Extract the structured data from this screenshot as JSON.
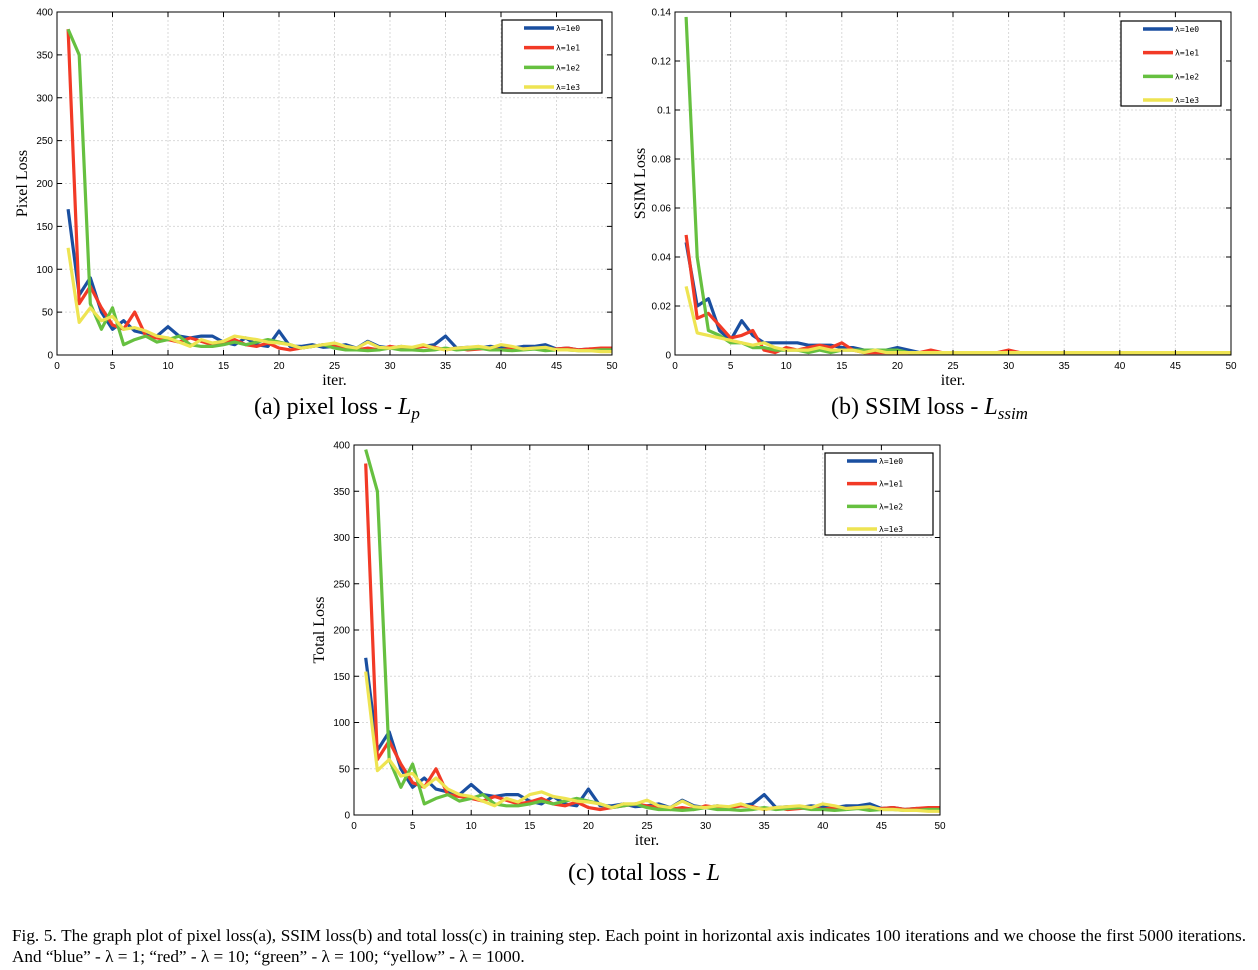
{
  "colors": {
    "blue": "#1a4fa0",
    "red": "#f23a26",
    "green": "#66c040",
    "yellow": "#eee452"
  },
  "chart_data": [
    {
      "type": "line",
      "id": "a",
      "xlabel": "iter.",
      "ylabel": "Pixel Loss",
      "xlim": [
        0,
        50
      ],
      "ylim": [
        0,
        400
      ],
      "xticks": [
        0,
        5,
        10,
        15,
        20,
        25,
        30,
        35,
        40,
        45,
        50
      ],
      "yticks": [
        0,
        50,
        100,
        150,
        200,
        250,
        300,
        350,
        400
      ],
      "legend_position": "top-right",
      "x": [
        1,
        2,
        3,
        4,
        5,
        6,
        7,
        8,
        9,
        10,
        11,
        12,
        13,
        14,
        15,
        16,
        17,
        18,
        19,
        20,
        21,
        22,
        23,
        24,
        25,
        26,
        27,
        28,
        29,
        30,
        31,
        32,
        33,
        34,
        35,
        36,
        37,
        38,
        39,
        40,
        41,
        42,
        43,
        44,
        45,
        46,
        47,
        48,
        49,
        50
      ],
      "series": [
        {
          "name": "λ=1e0",
          "color": "blue",
          "values": [
            170,
            70,
            90,
            50,
            30,
            40,
            28,
            25,
            22,
            33,
            22,
            20,
            22,
            22,
            15,
            12,
            20,
            12,
            10,
            28,
            10,
            10,
            12,
            9,
            10,
            12,
            8,
            16,
            10,
            8,
            10,
            8,
            10,
            12,
            22,
            8,
            9,
            8,
            10,
            9,
            8,
            10,
            10,
            12,
            7,
            8,
            6,
            7,
            6,
            6
          ]
        },
        {
          "name": "λ=1e1",
          "color": "red",
          "values": [
            380,
            60,
            80,
            55,
            35,
            30,
            50,
            22,
            20,
            18,
            15,
            20,
            16,
            12,
            14,
            18,
            12,
            10,
            14,
            8,
            6,
            8,
            10,
            12,
            10,
            8,
            6,
            8,
            6,
            10,
            8,
            8,
            10,
            9,
            6,
            8,
            6,
            7,
            8,
            6,
            8,
            7,
            8,
            6,
            7,
            8,
            6,
            7,
            8,
            8
          ]
        },
        {
          "name": "λ=1e2",
          "color": "green",
          "values": [
            380,
            350,
            60,
            30,
            55,
            12,
            18,
            22,
            15,
            18,
            22,
            12,
            10,
            10,
            12,
            15,
            12,
            15,
            18,
            15,
            12,
            8,
            10,
            12,
            8,
            6,
            6,
            5,
            6,
            8,
            6,
            6,
            5,
            6,
            8,
            6,
            7,
            8,
            6,
            6,
            5,
            6,
            7,
            5,
            6,
            6,
            5,
            5,
            6,
            6
          ]
        },
        {
          "name": "λ=1e3",
          "color": "yellow",
          "values": [
            125,
            38,
            55,
            40,
            45,
            30,
            32,
            28,
            22,
            20,
            15,
            10,
            18,
            14,
            16,
            22,
            20,
            18,
            15,
            14,
            12,
            8,
            10,
            12,
            14,
            10,
            8,
            15,
            9,
            8,
            10,
            9,
            12,
            8,
            6,
            8,
            9,
            10,
            8,
            12,
            10,
            7,
            8,
            9,
            6,
            6,
            5,
            5,
            4,
            4
          ]
        }
      ]
    },
    {
      "type": "line",
      "id": "b",
      "xlabel": "iter.",
      "ylabel": "SSIM Loss",
      "xlim": [
        0,
        50
      ],
      "ylim": [
        0,
        0.14
      ],
      "xticks": [
        0,
        5,
        10,
        15,
        20,
        25,
        30,
        35,
        40,
        45,
        50
      ],
      "yticks": [
        0,
        0.02,
        0.04,
        0.06,
        0.08,
        0.1,
        0.12,
        0.14
      ],
      "legend_position": "top-right",
      "x": [
        1,
        2,
        3,
        4,
        5,
        6,
        7,
        8,
        9,
        10,
        11,
        12,
        13,
        14,
        15,
        16,
        17,
        18,
        19,
        20,
        21,
        22,
        23,
        24,
        25,
        26,
        27,
        28,
        29,
        30,
        31,
        32,
        33,
        34,
        35,
        36,
        37,
        38,
        39,
        40,
        41,
        42,
        43,
        44,
        45,
        46,
        47,
        48,
        49,
        50
      ],
      "series": [
        {
          "name": "λ=1e0",
          "color": "blue",
          "values": [
            0.046,
            0.02,
            0.023,
            0.01,
            0.006,
            0.014,
            0.008,
            0.005,
            0.005,
            0.005,
            0.005,
            0.004,
            0.004,
            0.004,
            0.003,
            0.003,
            0.002,
            0.002,
            0.002,
            0.003,
            0.002,
            0.001,
            0.001,
            0.001,
            0.001,
            0.001,
            0.001,
            0.001,
            0.001,
            0.001,
            0.001,
            0.001,
            0.001,
            0.001,
            0.001,
            0.001,
            0.001,
            0.001,
            0.001,
            0.001,
            0.001,
            0.001,
            0.001,
            0.001,
            0.001,
            0.001,
            0.001,
            0.001,
            0.001,
            0.001
          ]
        },
        {
          "name": "λ=1e1",
          "color": "red",
          "values": [
            0.049,
            0.015,
            0.017,
            0.012,
            0.007,
            0.008,
            0.01,
            0.002,
            0.001,
            0.003,
            0.002,
            0.003,
            0.004,
            0.003,
            0.005,
            0.002,
            0.001,
            0.001,
            0.001,
            0.001,
            0.001,
            0.001,
            0.002,
            0.001,
            0.001,
            0.001,
            0.001,
            0.001,
            0.001,
            0.002,
            0.001,
            0.001,
            0.001,
            0.001,
            0.001,
            0.001,
            0.001,
            0.001,
            0.001,
            0.001,
            0.001,
            0.001,
            0.001,
            0.001,
            0.001,
            0.001,
            0.001,
            0.001,
            0.001,
            0.001
          ]
        },
        {
          "name": "λ=1e2",
          "color": "green",
          "values": [
            0.138,
            0.04,
            0.01,
            0.008,
            0.005,
            0.005,
            0.003,
            0.003,
            0.002,
            0.002,
            0.002,
            0.001,
            0.002,
            0.001,
            0.002,
            0.002,
            0.002,
            0.002,
            0.002,
            0.002,
            0.001,
            0.001,
            0.001,
            0.001,
            0.001,
            0.001,
            0.001,
            0.001,
            0.001,
            0.001,
            0.001,
            0.001,
            0.001,
            0.001,
            0.001,
            0.001,
            0.001,
            0.001,
            0.001,
            0.001,
            0.001,
            0.001,
            0.001,
            0.001,
            0.001,
            0.001,
            0.001,
            0.001,
            0.001,
            0.001
          ]
        },
        {
          "name": "λ=1e3",
          "color": "yellow",
          "values": [
            0.028,
            0.009,
            0.008,
            0.007,
            0.006,
            0.005,
            0.004,
            0.005,
            0.003,
            0.002,
            0.002,
            0.002,
            0.003,
            0.002,
            0.002,
            0.002,
            0.001,
            0.002,
            0.001,
            0.001,
            0.001,
            0.001,
            0.001,
            0.001,
            0.001,
            0.001,
            0.001,
            0.001,
            0.001,
            0.001,
            0.001,
            0.001,
            0.001,
            0.001,
            0.001,
            0.001,
            0.001,
            0.001,
            0.001,
            0.001,
            0.001,
            0.001,
            0.001,
            0.001,
            0.001,
            0.001,
            0.001,
            0.001,
            0.001,
            0.001
          ]
        }
      ]
    },
    {
      "type": "line",
      "id": "c",
      "xlabel": "iter.",
      "ylabel": "Total Loss",
      "xlim": [
        0,
        50
      ],
      "ylim": [
        0,
        400
      ],
      "xticks": [
        0,
        5,
        10,
        15,
        20,
        25,
        30,
        35,
        40,
        45,
        50
      ],
      "yticks": [
        0,
        50,
        100,
        150,
        200,
        250,
        300,
        350,
        400
      ],
      "legend_position": "top-right",
      "x": [
        1,
        2,
        3,
        4,
        5,
        6,
        7,
        8,
        9,
        10,
        11,
        12,
        13,
        14,
        15,
        16,
        17,
        18,
        19,
        20,
        21,
        22,
        23,
        24,
        25,
        26,
        27,
        28,
        29,
        30,
        31,
        32,
        33,
        34,
        35,
        36,
        37,
        38,
        39,
        40,
        41,
        42,
        43,
        44,
        45,
        46,
        47,
        48,
        49,
        50
      ],
      "series": [
        {
          "name": "λ=1e0",
          "color": "blue",
          "values": [
            170,
            70,
            90,
            50,
            30,
            40,
            28,
            25,
            22,
            33,
            22,
            20,
            22,
            22,
            15,
            12,
            20,
            12,
            10,
            28,
            10,
            10,
            12,
            9,
            10,
            12,
            8,
            16,
            10,
            8,
            10,
            8,
            10,
            12,
            22,
            8,
            9,
            8,
            10,
            9,
            8,
            10,
            10,
            12,
            7,
            8,
            6,
            7,
            6,
            6
          ]
        },
        {
          "name": "λ=1e1",
          "color": "red",
          "values": [
            380,
            60,
            80,
            55,
            35,
            30,
            50,
            22,
            20,
            18,
            15,
            20,
            16,
            12,
            14,
            18,
            12,
            10,
            14,
            8,
            6,
            8,
            10,
            12,
            10,
            8,
            6,
            8,
            6,
            10,
            8,
            8,
            10,
            9,
            6,
            8,
            6,
            7,
            8,
            6,
            8,
            7,
            8,
            6,
            7,
            8,
            6,
            7,
            8,
            8
          ]
        },
        {
          "name": "λ=1e2",
          "color": "green",
          "values": [
            395,
            350,
            60,
            30,
            55,
            12,
            18,
            22,
            15,
            18,
            22,
            12,
            10,
            10,
            12,
            15,
            12,
            15,
            18,
            15,
            12,
            8,
            10,
            12,
            8,
            6,
            6,
            5,
            6,
            8,
            6,
            6,
            5,
            6,
            8,
            6,
            7,
            8,
            6,
            6,
            5,
            6,
            7,
            5,
            6,
            6,
            5,
            5,
            6,
            6
          ]
        },
        {
          "name": "λ=1e3",
          "color": "yellow",
          "values": [
            155,
            48,
            60,
            42,
            45,
            30,
            40,
            28,
            22,
            20,
            15,
            10,
            18,
            14,
            22,
            25,
            20,
            18,
            15,
            14,
            12,
            8,
            12,
            12,
            16,
            10,
            8,
            15,
            9,
            8,
            10,
            9,
            12,
            8,
            6,
            8,
            9,
            10,
            8,
            12,
            10,
            7,
            8,
            9,
            6,
            6,
            5,
            5,
            4,
            4
          ]
        }
      ]
    }
  ],
  "captions": {
    "a": {
      "text": "(a) pixel loss - ",
      "symbol": "L",
      "sub": "p"
    },
    "b": {
      "text": "(b) SSIM loss - ",
      "symbol": "L",
      "sub": "ssim"
    },
    "c": {
      "text": "(c) total loss - ",
      "symbol": "L",
      "sub": ""
    }
  },
  "figure_caption": "Fig. 5.   The graph plot of pixel loss(a), SSIM loss(b) and total loss(c) in training step. Each point in horizontal axis indicates 100 iterations and we choose the first 5000 iterations. And “blue” - λ = 1; “red” - λ = 10; “green” - λ = 100; “yellow” - λ = 1000."
}
